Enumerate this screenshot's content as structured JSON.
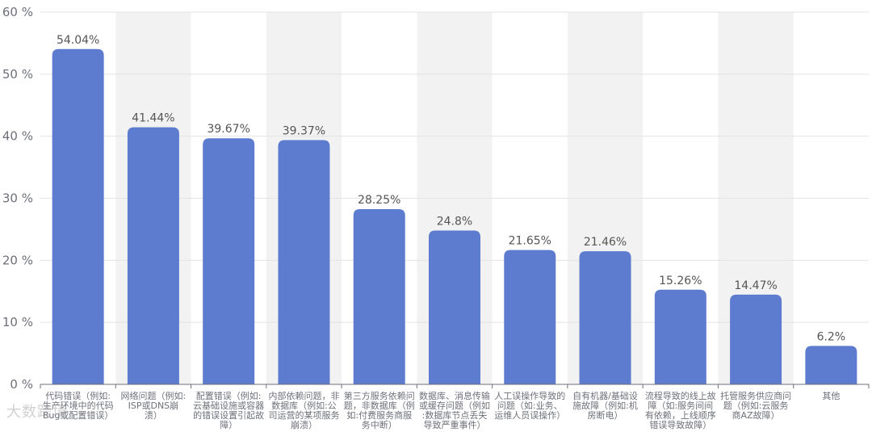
{
  "chart_data": {
    "type": "bar",
    "title": "",
    "xlabel": "",
    "ylabel": "",
    "ylim": [
      0,
      60
    ],
    "y_ticks": [
      0,
      10,
      20,
      30,
      40,
      50,
      60
    ],
    "y_tick_suffix": " %",
    "grid": true,
    "legend": "none",
    "bar_color": "#5e7ccf",
    "band_color": "#f2f2f2",
    "categories": [
      "代码错误（例如:生产环境中的代码Bug或配置错误）",
      "网络问题（例如:ISP或DNS崩溃）",
      "配置错误（例如:云基础设施或容器的错误设置引起故障）",
      "内部依赖问题，非数据库（例如:公司运营的某项服务崩溃）",
      "第三方服务依赖问题，非数据库（例如:付费服务商服务中断）",
      "数据库、消息传输或缓存问题（例如:数据库节点丢失导致严重事件）",
      "人工误操作导致的问题（如:业务、运维人员误操作）",
      "自有机器/基础设施故障（例如:机房断电）",
      "流程导致的线上故障（如:服务间间有依赖，上线顺序错误导致故障）",
      "托管服务供应商问题（例如:云服务商AZ故障）",
      "其他"
    ],
    "category_lines": [
      [
        "代码错误（例如:",
        "生产环境中的代码",
        "Bug或配置错误）"
      ],
      [
        "网络问题（例如:",
        "ISP或DNS崩",
        "溃）"
      ],
      [
        "配置错误（例如:",
        "云基础设施或容器",
        "的错误设置引起故",
        "障）"
      ],
      [
        "内部依赖问题，非",
        "数据库（例如:公",
        "司运营的某项服务",
        "崩溃）"
      ],
      [
        "第三方服务依赖问",
        "题，非数据库（例",
        "如:付费服务商服",
        "务中断）"
      ],
      [
        "数据库、消息传输",
        "或缓存问题（例如",
        ":数据库节点丢失",
        "导致严重事件）"
      ],
      [
        "人工误操作导致的",
        "问题（如:业务、",
        "运维人员误操作）"
      ],
      [
        "自有机器/基础设",
        "施故障（例如:机",
        "房断电）"
      ],
      [
        "流程导致的线上故",
        "障（如:服务间间",
        "有依赖，上线顺序",
        "错误导致故障）"
      ],
      [
        "托管服务供应商问",
        "题（例如:云服务",
        "商AZ故障）"
      ],
      [
        "其他"
      ]
    ],
    "values": [
      54.04,
      41.44,
      39.67,
      39.37,
      28.25,
      24.8,
      21.65,
      21.46,
      15.26,
      14.47,
      6.2
    ],
    "value_labels": [
      "54.04%",
      "41.44%",
      "39.67%",
      "39.37%",
      "28.25%",
      "24.8%",
      "21.65%",
      "21.46%",
      "15.26%",
      "14.47%",
      "6.2%"
    ]
  },
  "watermark": {
    "text": "大数跨境"
  }
}
